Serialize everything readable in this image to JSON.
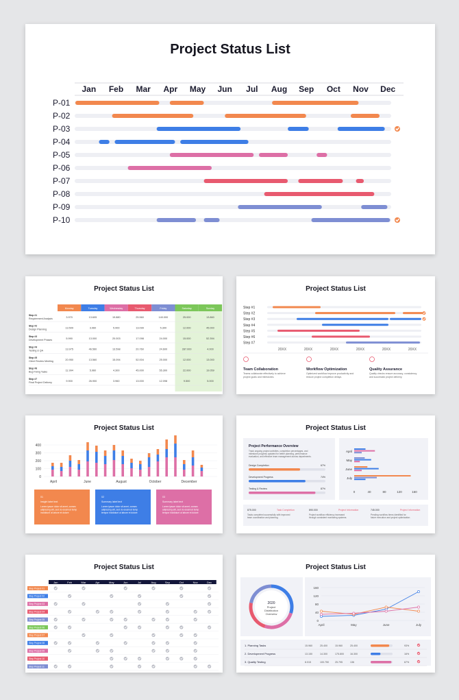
{
  "title": "Project Status List",
  "colors": {
    "orange": "#f2884e",
    "blue": "#3e7ee6",
    "pink": "#dd6fa6",
    "red": "#e85a6f",
    "periwinkle": "#7e8ed3",
    "track": "#eeeff4",
    "check": "#f2884e"
  },
  "main_gantt": {
    "months": [
      "Jan",
      "Feb",
      "Mar",
      "Apr",
      "May",
      "Jun",
      "Jul",
      "Aug",
      "Sep",
      "Oct",
      "Nov",
      "Dec"
    ],
    "rows": [
      {
        "label": "P-01",
        "color": "orange",
        "segments": [
          [
            0,
            3.2
          ],
          [
            3.6,
            4.9
          ],
          [
            7.5,
            10.8
          ]
        ],
        "check": false
      },
      {
        "label": "P-02",
        "color": "orange",
        "segments": [
          [
            1.4,
            4.5
          ],
          [
            5.7,
            8.8
          ],
          [
            10.5,
            11.6
          ]
        ],
        "check": false
      },
      {
        "label": "P-03",
        "color": "blue",
        "segments": [
          [
            3.1,
            6.3
          ],
          [
            8.1,
            8.9
          ],
          [
            10.0,
            11.8
          ]
        ],
        "check": true
      },
      {
        "label": "P-04",
        "color": "blue",
        "segments": [
          [
            0.9,
            1.3
          ],
          [
            1.5,
            3.8
          ],
          [
            4.0,
            6.6
          ]
        ],
        "check": false
      },
      {
        "label": "P-05",
        "color": "pink",
        "segments": [
          [
            3.6,
            6.8
          ],
          [
            7.0,
            8.1
          ],
          [
            9.2,
            9.6
          ]
        ],
        "check": false
      },
      {
        "label": "P-06",
        "color": "pink",
        "segments": [
          [
            2.0,
            5.2
          ]
        ],
        "check": false
      },
      {
        "label": "P-07",
        "color": "red",
        "segments": [
          [
            4.9,
            8.1
          ],
          [
            8.5,
            10.2
          ],
          [
            10.7,
            11.0
          ]
        ],
        "check": false
      },
      {
        "label": "P-08",
        "color": "red",
        "segments": [
          [
            7.2,
            11.4
          ]
        ],
        "check": false
      },
      {
        "label": "P-09",
        "color": "periwinkle",
        "segments": [
          [
            6.2,
            9.4
          ],
          [
            10.9,
            11.9
          ]
        ],
        "check": false
      },
      {
        "label": "P-10",
        "color": "periwinkle",
        "segments": [
          [
            3.1,
            4.6
          ],
          [
            4.9,
            5.5
          ],
          [
            9.0,
            12.0
          ]
        ],
        "check": true
      }
    ]
  },
  "table_slide": {
    "days": [
      "Monday",
      "Tuesday",
      "Wednesday",
      "Thursday",
      "Friday",
      "Saturday",
      "Sunday"
    ],
    "day_colors": [
      "#f2884e",
      "#3e7ee6",
      "#dd6fa6",
      "#e85a6f",
      "#7e8ed3",
      "#7cc75a",
      "#7cc75a"
    ],
    "rows": [
      {
        "step": "Step #1",
        "name": "Requirement Analysis",
        "values": [
          "3.970",
          "13.605",
          "19.880",
          "25.560",
          "140.000",
          "25.000",
          "13.860"
        ]
      },
      {
        "step": "Step #2",
        "name": "Design Planning",
        "values": [
          "13.509",
          "3.960",
          "5.900",
          "13.099",
          "5.300",
          "12.000",
          "45.000"
        ]
      },
      {
        "step": "Step #3",
        "name": "Development Phases",
        "values": [
          "5.990",
          "13.000",
          "20.003",
          "17.098",
          "24.000",
          "15.000",
          "52.394"
        ]
      },
      {
        "step": "Step #4",
        "name": "Testing & QA",
        "values": [
          "13.975",
          "46.560",
          "13.598",
          "20.760",
          "24.600",
          "287.000",
          "4.000"
        ]
      },
      {
        "step": "Step #5",
        "name": "Client Review Meeting",
        "values": [
          "20.950",
          "13.560",
          "15.094",
          "52.004",
          "25.000",
          "12.000",
          "13.000"
        ]
      },
      {
        "step": "Step #6",
        "name": "Bug Fixing Tasks",
        "values": [
          "11.994",
          "5.960",
          "4.300",
          "45.000",
          "55.300",
          "22.000",
          "19.059"
        ]
      },
      {
        "step": "Step #7",
        "name": "Final Project Delivery",
        "values": [
          "9.900",
          "26.900",
          "3.960",
          "13.000",
          "12.098",
          "9.500",
          "5.000"
        ]
      }
    ]
  },
  "steps_slide": {
    "steps": [
      "Step #1",
      "Step #2",
      "Step #3",
      "Step #4",
      "Step #5",
      "Step #6",
      "Step #7"
    ],
    "ticks": [
      "20XX",
      "20XX",
      "20XX",
      "20XX",
      "20XX",
      "20XX"
    ],
    "features": [
      {
        "title": "Team Collaboration",
        "desc": "Teams collaborate effectively to achieve project goals and milestones.",
        "icon": "people-icon"
      },
      {
        "title": "Workflow Optimization",
        "desc": "Optimized workflow improve productivity and reduce project completion delays.",
        "icon": "funnel-icon"
      },
      {
        "title": "Quality Assurance",
        "desc": "Quality checks ensure accuracy, consistency and successful project delivery.",
        "icon": "chart-icon"
      }
    ]
  },
  "bar_slide": {
    "chart_data": {
      "type": "bar",
      "yticks": [
        "400",
        "300",
        "200",
        "100",
        "0"
      ],
      "xlabels": [
        "April",
        "June",
        "August",
        "October",
        "December"
      ],
      "ylim": [
        0,
        400
      ]
    },
    "cards": [
      {
        "num": "01",
        "title": "Insight label text",
        "desc": "Lorem ipsum dolor sit amet, consec adipiscing elit, sed do eiusmod temp incididunt ut labore et dolore",
        "color": "#f2884e"
      },
      {
        "num": "02",
        "title": "Summary label text",
        "desc": "Lorem ipsum dolor sit amet, consec adipiscing elit, sed do eiusmod temp tempor incididunt ut labore et dolore",
        "color": "#3e7ee6"
      },
      {
        "num": "03",
        "title": "Summary label text",
        "desc": "Lorem ipsum dolor sit amet, consec adipiscing elit, sed do eiusmod temp tempor incididunt ut labore et dolore",
        "color": "#dd6fa6"
      }
    ]
  },
  "performance_slide": {
    "heading": "Project Performance Overview",
    "desc": "Track ongoing project activities, completion percentages, and milestone progress updated for better planning, performance evaluation, and effective team management across departments.",
    "bars": [
      {
        "label": "Design Completion",
        "value": "67%",
        "pct": 0.67,
        "color": "#f2884e"
      },
      {
        "label": "Development Progress",
        "value": "74%",
        "pct": 0.74,
        "color": "#3e7ee6"
      },
      {
        "label": "Testing & Review",
        "value": "87%",
        "pct": 0.87,
        "color": "#dd6fa6"
      }
    ],
    "hbar_labels": [
      "April",
      "May",
      "June",
      "July"
    ],
    "hbar_ticks": [
      "0",
      "40",
      "80",
      "120",
      "160"
    ],
    "stats": [
      {
        "value": "875.000",
        "title": "Task Completion",
        "desc": "Tasks completed successfully with improved team coordination and planning."
      },
      {
        "value": "890.000",
        "title": "Project Information",
        "desc": "Project workflow efficiency increased through consistent monitoring systems."
      },
      {
        "value": "745.000",
        "title": "Project Information",
        "desc": "Pending workflow items identified for future execution and project optimization."
      }
    ]
  },
  "checklist_slide": {
    "months": [
      "Jan",
      "Feb",
      "Mar",
      "Apr",
      "May",
      "Jun",
      "Jul",
      "Aug",
      "Sep",
      "Oct",
      "Nov",
      "Dec"
    ],
    "rows": [
      {
        "label": "Step Project 01",
        "color": "#f2884e",
        "checks": [
          1,
          0,
          1,
          0,
          0,
          1,
          0,
          1,
          0,
          1,
          0,
          1
        ]
      },
      {
        "label": "Step Project 02",
        "color": "#3e7ee6",
        "checks": [
          0,
          1,
          0,
          0,
          1,
          0,
          1,
          0,
          0,
          1,
          0,
          1
        ]
      },
      {
        "label": "Step Project 03",
        "color": "#dd6fa6",
        "checks": [
          1,
          0,
          1,
          0,
          0,
          0,
          1,
          0,
          1,
          0,
          0,
          1
        ]
      },
      {
        "label": "Step Project 04",
        "color": "#e85a6f",
        "checks": [
          0,
          1,
          0,
          1,
          1,
          0,
          1,
          0,
          1,
          0,
          1,
          1
        ]
      },
      {
        "label": "Step Project 05",
        "color": "#7e8ed3",
        "checks": [
          1,
          0,
          1,
          0,
          1,
          1,
          0,
          1,
          1,
          0,
          1,
          0
        ]
      },
      {
        "label": "Step Project 06",
        "color": "#7cc75a",
        "checks": [
          1,
          1,
          0,
          0,
          0,
          1,
          1,
          0,
          1,
          1,
          0,
          1
        ]
      },
      {
        "label": "Step Project 07",
        "color": "#f2884e",
        "checks": [
          0,
          0,
          1,
          0,
          1,
          0,
          0,
          1,
          0,
          1,
          1,
          0
        ]
      },
      {
        "label": "Step Project 08",
        "color": "#3e7ee6",
        "checks": [
          1,
          1,
          0,
          1,
          0,
          1,
          0,
          1,
          1,
          0,
          1,
          0
        ]
      },
      {
        "label": "Step Project 09",
        "color": "#dd6fa6",
        "checks": [
          0,
          1,
          0,
          1,
          1,
          0,
          0,
          1,
          1,
          0,
          1,
          0
        ]
      },
      {
        "label": "Step Project 10",
        "color": "#e85a6f",
        "checks": [
          0,
          0,
          0,
          0,
          1,
          1,
          1,
          0,
          1,
          1,
          1,
          0
        ]
      },
      {
        "label": "Step Project 11",
        "color": "#7e8ed3",
        "checks": [
          1,
          1,
          0,
          0,
          1,
          0,
          1,
          1,
          0,
          0,
          1,
          1
        ]
      }
    ]
  },
  "donut_slide": {
    "center": {
      "year": "2020",
      "text": "Project Distribution Overview"
    },
    "chart_data": {
      "type": "line",
      "x": [
        "April",
        "May",
        "June",
        "July"
      ],
      "yticks": [
        "160",
        "120",
        "80",
        "40",
        "0"
      ],
      "ylim": [
        0,
        160
      ],
      "series": [
        {
          "color": "#3e7ee6",
          "values": [
            20,
            25,
            55,
            140
          ]
        },
        {
          "color": "#f2884e",
          "values": [
            45,
            30,
            65,
            45
          ]
        },
        {
          "color": "#dd6fa6",
          "values": [
            30,
            35,
            45,
            65
          ]
        }
      ]
    },
    "table": [
      {
        "label": "1. Planning Tasks",
        "v": [
          "15.960",
          "25.400",
          "15.960",
          "25.400"
        ],
        "pct": "93%",
        "bar": 0.85,
        "color": "#f2884e"
      },
      {
        "label": "2. Development Progress",
        "v": [
          "13.150",
          "14.300",
          "175.800",
          "16.300"
        ],
        "pct": "16%",
        "bar": 0.45,
        "color": "#3e7ee6"
      },
      {
        "label": "3. Quality Testing",
        "v": [
          "8.015",
          "100.750",
          "25.795",
          "136"
        ],
        "pct": "67%",
        "bar": 0.95,
        "color": "#dd6fa6"
      }
    ]
  }
}
